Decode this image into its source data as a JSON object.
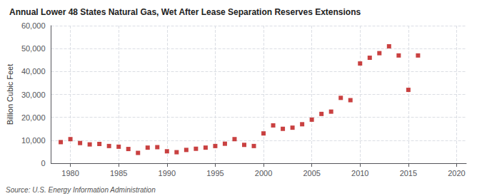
{
  "chart_data": {
    "type": "scatter",
    "title": "Annual Lower 48 States Natural Gas, Wet After Lease Separation Reserves Extensions",
    "ylabel": "Billion Cubic Feet",
    "annotations": [
      "Source: U.S. Energy Information Administration"
    ],
    "color": "#bb1111",
    "marker": "square",
    "grid": true,
    "xlim": [
      1978,
      2021
    ],
    "xticks": [
      1980,
      1985,
      1990,
      1995,
      2000,
      2005,
      2010,
      2015,
      2020
    ],
    "ylim": [
      0,
      60000
    ],
    "yticks": [
      0,
      {
        "value": 10000,
        "label": "10,000"
      },
      {
        "value": 20000,
        "label": "20,000"
      },
      {
        "value": 30000,
        "label": "30,000"
      },
      {
        "value": 40000,
        "label": "40,000"
      },
      {
        "value": 50000,
        "label": "50,000"
      },
      {
        "value": 60000,
        "label": "60,000"
      }
    ],
    "x": [
      1979,
      1980,
      1981,
      1982,
      1983,
      1984,
      1985,
      1986,
      1987,
      1988,
      1989,
      1990,
      1991,
      1992,
      1993,
      1994,
      1995,
      1996,
      1997,
      1998,
      1999,
      2000,
      2001,
      2002,
      2003,
      2004,
      2005,
      2006,
      2007,
      2008,
      2009,
      2010,
      2011,
      2012,
      2013,
      2014,
      2015,
      2016
    ],
    "values": [
      9200,
      10500,
      8800,
      8200,
      8400,
      7500,
      7200,
      6200,
      4500,
      6800,
      7000,
      5200,
      4800,
      5800,
      6300,
      6800,
      7500,
      8500,
      10500,
      8000,
      7500,
      13000,
      16500,
      15000,
      15500,
      17000,
      19000,
      21500,
      22500,
      28500,
      27500,
      43500,
      46000,
      48000,
      51000,
      47000,
      32000,
      47000
    ]
  }
}
